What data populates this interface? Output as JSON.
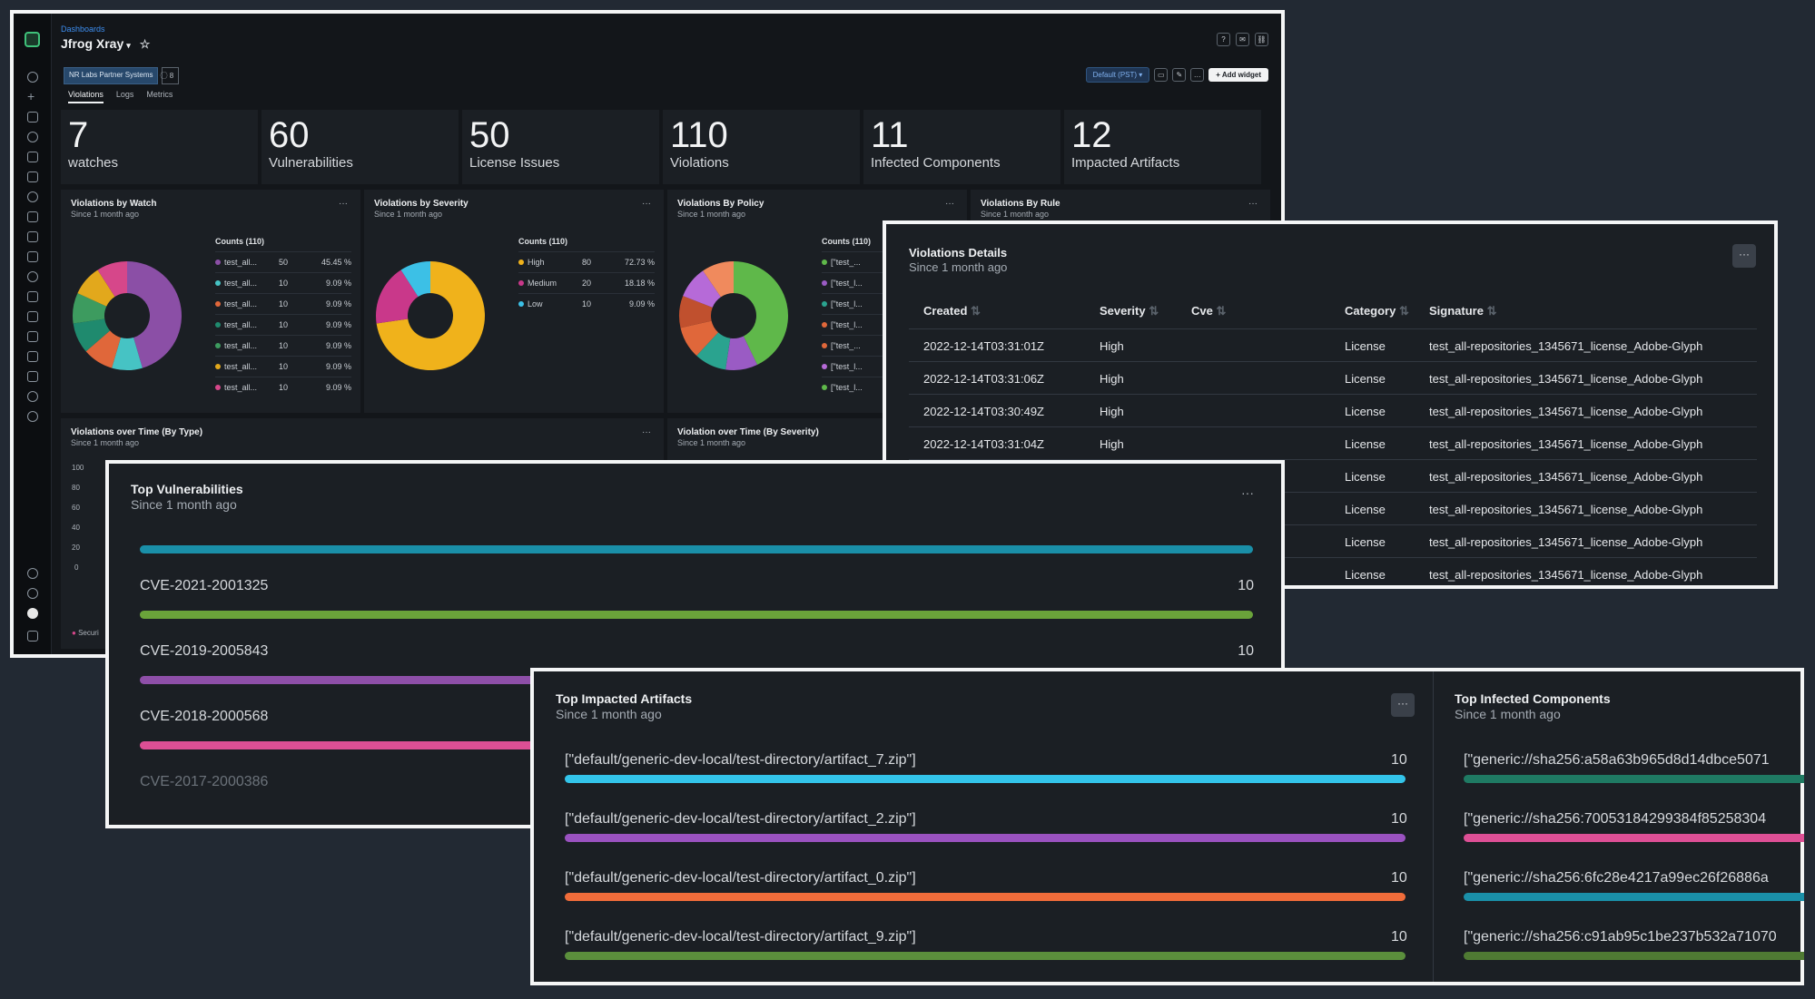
{
  "main": {
    "breadcrumb": "Dashboards",
    "title": "Jfrog Xray",
    "caret": "▾",
    "star": "☆",
    "tag_account": "NR Labs Partner Systems",
    "tag_count": "⃝ 8",
    "tabs": [
      "Violations",
      "Logs",
      "Metrics"
    ],
    "timezone": "Default (PST) ▾",
    "add_widget": "+ Add widget",
    "kpis": [
      {
        "value": "7",
        "label": "watches"
      },
      {
        "value": "60",
        "label": "Vulnerabilities"
      },
      {
        "value": "50",
        "label": "License Issues"
      },
      {
        "value": "110",
        "label": "Violations"
      },
      {
        "value": "11",
        "label": "Infected Components"
      },
      {
        "value": "12",
        "label": "Impacted Artifacts"
      }
    ],
    "panels": {
      "watch": {
        "title": "Violations by Watch",
        "sub": "Since 1 month ago",
        "menu": "···",
        "counts": "Counts (110)",
        "rows": [
          {
            "label": "test_all...",
            "n": "50",
            "pct": "45.45 %",
            "color": "#8b4fa6"
          },
          {
            "label": "test_all...",
            "n": "10",
            "pct": "9.09 %",
            "color": "#46c3c4"
          },
          {
            "label": "test_all...",
            "n": "10",
            "pct": "9.09 %",
            "color": "#e0673a"
          },
          {
            "label": "test_all...",
            "n": "10",
            "pct": "9.09 %",
            "color": "#1f8a6e"
          },
          {
            "label": "test_all...",
            "n": "10",
            "pct": "9.09 %",
            "color": "#3d9b5f"
          },
          {
            "label": "test_all...",
            "n": "10",
            "pct": "9.09 %",
            "color": "#e2a81c"
          },
          {
            "label": "test_all...",
            "n": "10",
            "pct": "9.09 %",
            "color": "#d6478a"
          }
        ]
      },
      "severity": {
        "title": "Violations by Severity",
        "sub": "Since 1 month ago",
        "menu": "···",
        "counts": "Counts (110)",
        "rows": [
          {
            "label": "High",
            "n": "80",
            "pct": "72.73 %",
            "color": "#f0b21b"
          },
          {
            "label": "Medium",
            "n": "20",
            "pct": "18.18 %",
            "color": "#c9388a"
          },
          {
            "label": "Low",
            "n": "10",
            "pct": "9.09 %",
            "color": "#3cc0e6"
          }
        ]
      },
      "policy": {
        "title": "Violations By Policy",
        "sub": "Since 1 month ago",
        "menu": "···",
        "counts": "Counts (110)",
        "rows": [
          {
            "label": "[\"test_...",
            "color": "#5fb84a"
          },
          {
            "label": "[\"test_l...",
            "color": "#9a5bc4"
          },
          {
            "label": "[\"test_l...",
            "color": "#2aa38f"
          },
          {
            "label": "[\"test_l...",
            "color": "#e0673a"
          },
          {
            "label": "[\"test_...",
            "color": "#e0673a"
          },
          {
            "label": "[\"test_l...",
            "color": "#b66ad8"
          },
          {
            "label": "[\"test_l...",
            "color": "#5fb84a"
          }
        ]
      },
      "rule": {
        "title": "Violations By Rule",
        "sub": "Since 1 month ago",
        "menu": "···"
      },
      "overtime_type": {
        "title": "Violations over Time (By Type)",
        "sub": "Since 1 month ago",
        "menu": "···",
        "yticks": [
          "100",
          "80",
          "60",
          "40",
          "20",
          "0"
        ],
        "legend": "Securi"
      },
      "overtime_sev": {
        "title": "Violation over Time (By Severity)",
        "sub": "Since 1 month ago"
      }
    }
  },
  "violations": {
    "title": "Violations Details",
    "sub": "Since 1 month ago",
    "menu": "···",
    "columns": [
      "Created",
      "Severity",
      "Cve",
      "Category",
      "Signature"
    ],
    "rows": [
      {
        "created": "2022-12-14T03:31:01Z",
        "severity": "High",
        "cve": "",
        "category": "License",
        "signature": "test_all-repositories_1345671_license_Adobe-Glyph"
      },
      {
        "created": "2022-12-14T03:31:06Z",
        "severity": "High",
        "cve": "",
        "category": "License",
        "signature": "test_all-repositories_1345671_license_Adobe-Glyph"
      },
      {
        "created": "2022-12-14T03:30:49Z",
        "severity": "High",
        "cve": "",
        "category": "License",
        "signature": "test_all-repositories_1345671_license_Adobe-Glyph"
      },
      {
        "created": "2022-12-14T03:31:04Z",
        "severity": "High",
        "cve": "",
        "category": "License",
        "signature": "test_all-repositories_1345671_license_Adobe-Glyph"
      },
      {
        "created": "",
        "severity": "",
        "cve": "",
        "category": "License",
        "signature": "test_all-repositories_1345671_license_Adobe-Glyph"
      },
      {
        "created": "",
        "severity": "",
        "cve": "",
        "category": "License",
        "signature": "test_all-repositories_1345671_license_Adobe-Glyph"
      },
      {
        "created": "",
        "severity": "",
        "cve": "",
        "category": "License",
        "signature": "test_all-repositories_1345671_license_Adobe-Glyph"
      },
      {
        "created": "",
        "severity": "",
        "cve": "",
        "category": "License",
        "signature": "test_all-repositories_1345671_license_Adobe-Glyph"
      }
    ]
  },
  "vulns": {
    "title": "Top Vulnerabilities",
    "sub": "Since 1 month ago",
    "menu": "···",
    "items": [
      {
        "label": "",
        "value": "",
        "color": "#1a8fa8"
      },
      {
        "label": "CVE-2021-2001325",
        "value": "10",
        "color": "#6aa33a"
      },
      {
        "label": "CVE-2019-2005843",
        "value": "10",
        "color": "#8e4fa8"
      },
      {
        "label": "CVE-2018-2000568",
        "value": "",
        "color": "#dd4f95"
      },
      {
        "label": "CVE-2017-2000386",
        "value": "",
        "color": ""
      }
    ]
  },
  "artifacts": {
    "title": "Top Impacted Artifacts",
    "sub": "Since 1 month ago",
    "menu": "···",
    "items": [
      {
        "label": "[\"default/generic-dev-local/test-directory/artifact_7.zip\"]",
        "value": "10",
        "color": "#33c4ea"
      },
      {
        "label": "[\"default/generic-dev-local/test-directory/artifact_2.zip\"]",
        "value": "10",
        "color": "#9a52c0"
      },
      {
        "label": "[\"default/generic-dev-local/test-directory/artifact_0.zip\"]",
        "value": "10",
        "color": "#f06c3a"
      },
      {
        "label": "[\"default/generic-dev-local/test-directory/artifact_9.zip\"]",
        "value": "10",
        "color": "#5b8f3c"
      }
    ]
  },
  "components": {
    "title": "Top Infected Components",
    "sub": "Since 1 month ago",
    "items": [
      {
        "label": "[\"generic://sha256:a58a63b965d8d14dbce5071",
        "color": "#1f7a63"
      },
      {
        "label": "[\"generic://sha256:70053184299384f85258304",
        "color": "#dd4f95"
      },
      {
        "label": "[\"generic://sha256:6fc28e4217a99ec26f26886a",
        "color": "#1a8fa8"
      },
      {
        "label": "[\"generic://sha256:c91ab95c1be237b532a71070",
        "color": "#4f7a33"
      }
    ]
  }
}
